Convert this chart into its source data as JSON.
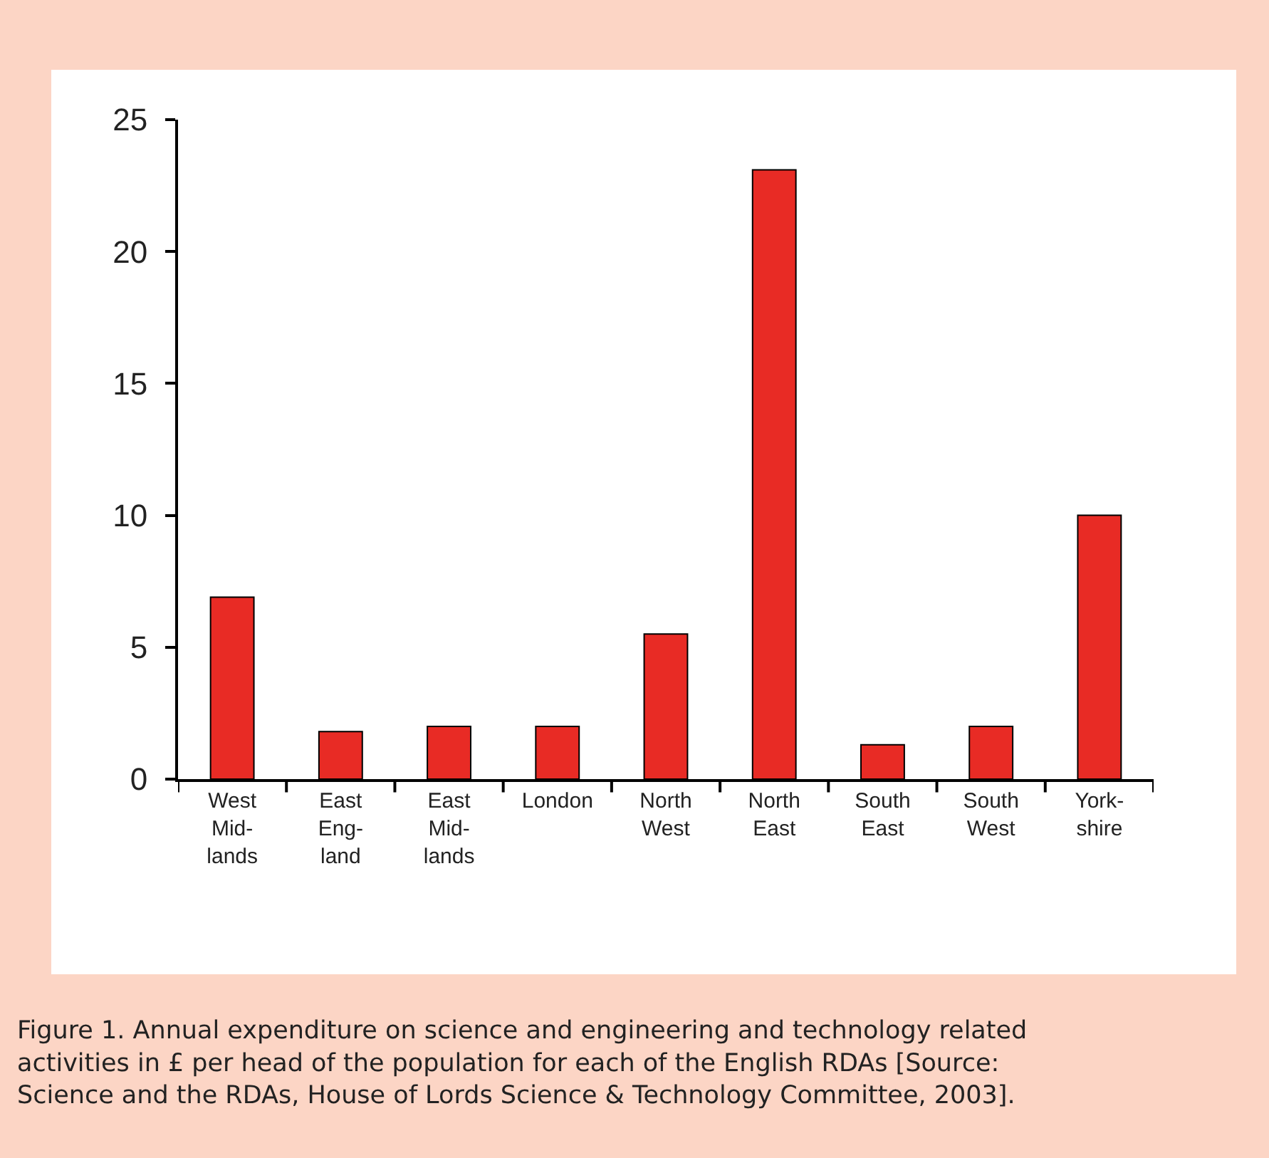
{
  "chart_data": {
    "type": "bar",
    "categories": [
      "West\nMid-\nlands",
      "East\nEng-\nland",
      "East\nMid-\nlands",
      "London",
      "North\nWest",
      "North\nEast",
      "South\nEast",
      "South\nWest",
      "York-\nshire"
    ],
    "values": [
      6.9,
      1.8,
      2.0,
      2.0,
      5.5,
      23.1,
      1.3,
      2.0,
      10.0
    ],
    "color": "#e82b25",
    "ylim": [
      0,
      25
    ],
    "yticks": [
      0,
      5,
      10,
      15,
      20,
      25
    ],
    "legend": false,
    "annotations": [
      "Figure 1. Annual expenditure on science and engineering and technology related\nactivities in £ per head of the population for each of the English RDAs [Source:\nScience and the RDAs, House of Lords Science & Technology Committee, 2003]."
    ]
  }
}
